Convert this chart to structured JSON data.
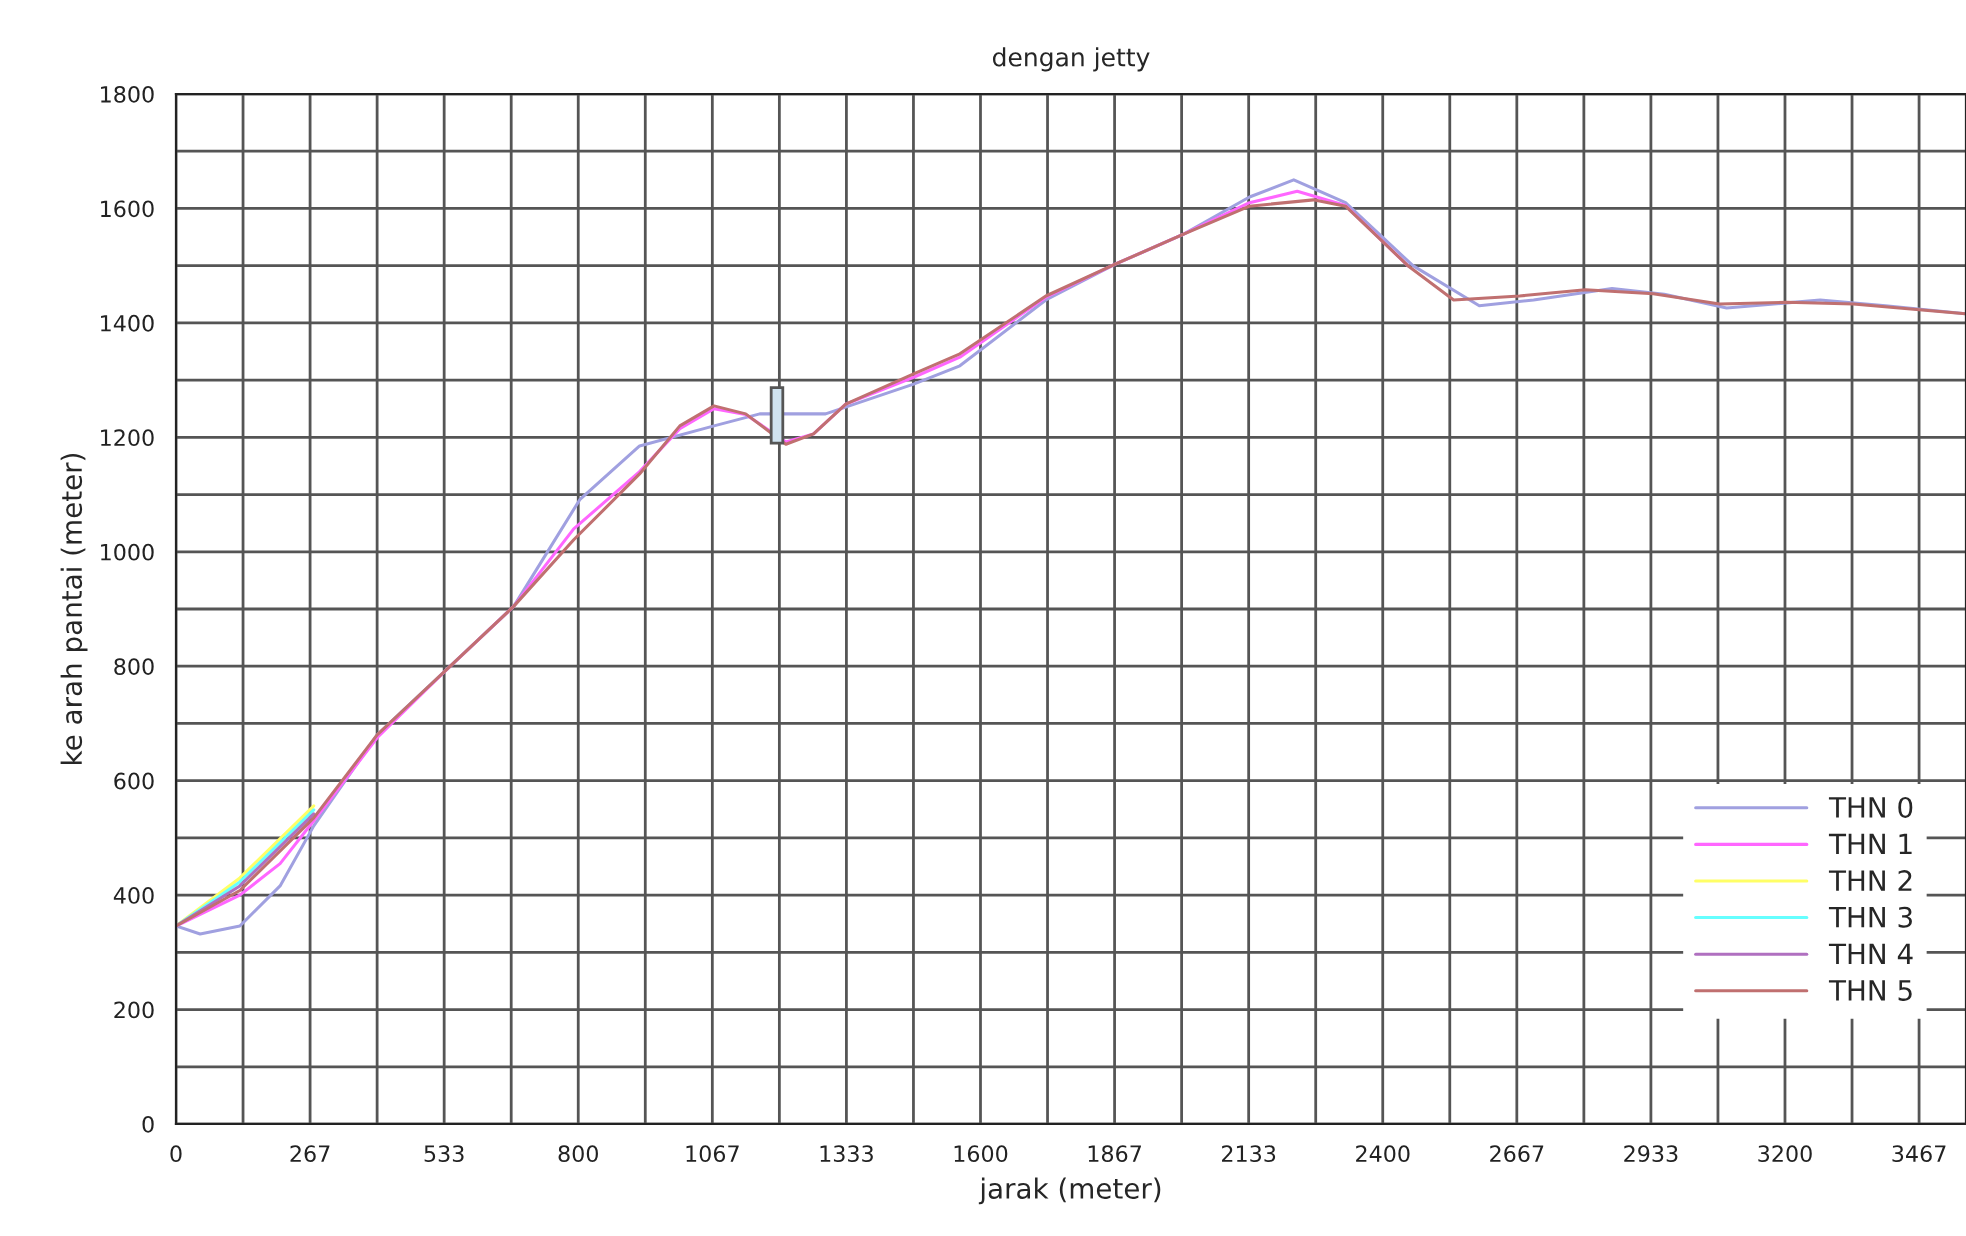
{
  "chart_data": {
    "type": "line",
    "title": "dengan jetty",
    "xlabel": "jarak (meter)",
    "ylabel": "ke arah pantai (meter)",
    "xlim": [
      0,
      3560
    ],
    "ylim": [
      0,
      1800
    ],
    "xticks": [
      0,
      {
        "value": 133.33,
        "label": null
      },
      {
        "value": 266.67,
        "label": "267"
      },
      {
        "value": 400,
        "label": null
      },
      {
        "value": 533.33,
        "label": "533"
      },
      {
        "value": 666.67,
        "label": null
      },
      800,
      {
        "value": 933.33,
        "label": null
      },
      {
        "value": 1066.67,
        "label": "1067"
      },
      {
        "value": 1200,
        "label": null
      },
      {
        "value": 1333.33,
        "label": "1333"
      },
      {
        "value": 1466.67,
        "label": null
      },
      1600,
      {
        "value": 1733.33,
        "label": null
      },
      {
        "value": 1866.67,
        "label": "1867"
      },
      {
        "value": 2000,
        "label": null
      },
      {
        "value": 2133.33,
        "label": "2133"
      },
      {
        "value": 2266.67,
        "label": null
      },
      2400,
      {
        "value": 2533.33,
        "label": null
      },
      {
        "value": 2666.67,
        "label": "2667"
      },
      {
        "value": 2800,
        "label": null
      },
      {
        "value": 2933.33,
        "label": "2933"
      },
      {
        "value": 3066.67,
        "label": null
      },
      3200,
      {
        "value": 3333.33,
        "label": null
      },
      {
        "value": 3466.67,
        "label": "3467"
      }
    ],
    "yticks": [
      0,
      {
        "value": 100,
        "label": null
      },
      200,
      {
        "value": 300,
        "label": null
      },
      400,
      {
        "value": 500,
        "label": null
      },
      600,
      {
        "value": 700,
        "label": null
      },
      800,
      {
        "value": 900,
        "label": null
      },
      1000,
      {
        "value": 1100,
        "label": null
      },
      1200,
      {
        "value": 1300,
        "label": null
      },
      1400,
      {
        "value": 1500,
        "label": null
      },
      1600,
      {
        "value": 1700,
        "label": null
      },
      1800
    ],
    "grid": true,
    "legend": "bottom right",
    "marker": "none",
    "line_style": "solid",
    "series": [
      {
        "name": "THN 0",
        "color": "#a0a0e0",
        "x": [
          0,
          48,
          127,
          207,
          274,
          400,
          537,
          672,
          803,
          922,
          1070,
          1161,
          1292,
          1467,
          1559,
          1730,
          1869,
          2004,
          2135,
          2223,
          2326,
          2460,
          2592,
          2700,
          2856,
          2960,
          3084,
          3270,
          3400,
          3559
        ],
        "values": [
          346,
          332,
          346,
          416,
          521,
          680,
          793,
          905,
          1091,
          1185,
          1220,
          1241,
          1241,
          1293,
          1325,
          1440,
          1503,
          1555,
          1620,
          1650,
          1610,
          1500,
          1430,
          1440,
          1460,
          1450,
          1426,
          1440,
          1430,
          1416
        ]
      },
      {
        "name": "THN 1",
        "color": "#ff66ff",
        "x": [
          0,
          127,
          207,
          274,
          400,
          537,
          672,
          791,
          922,
          1002,
          1070,
          1133,
          1213,
          1268,
          1332,
          1467,
          1559,
          1730,
          1869,
          2004,
          2135,
          2230,
          2326,
          2450
        ],
        "values": [
          346,
          400,
          455,
          530,
          675,
          793,
          905,
          1040,
          1140,
          1215,
          1250,
          1240,
          1192,
          1206,
          1258,
          1305,
          1340,
          1445,
          1503,
          1555,
          1610,
          1630,
          1605,
          1500
        ]
      },
      {
        "name": "THN 2",
        "color": "#ffff66",
        "x": [
          0,
          127,
          274
        ],
        "values": [
          346,
          430,
          556
        ]
      },
      {
        "name": "THN 3",
        "color": "#66ffff",
        "x": [
          0,
          127,
          274
        ],
        "values": [
          346,
          423,
          549
        ]
      },
      {
        "name": "THN 4",
        "color": "#b070c0",
        "x": [
          0,
          127,
          274
        ],
        "values": [
          346,
          416,
          542
        ]
      },
      {
        "name": "THN 5",
        "color": "#c07070",
        "x": [
          0,
          127,
          274,
          400,
          537,
          672,
          791,
          922,
          1002,
          1070,
          1133,
          1213,
          1268,
          1332,
          1467,
          1559,
          1730,
          1869,
          2004,
          2135,
          2262,
          2326,
          2450,
          2541,
          2672,
          2803,
          2938,
          3070,
          3203,
          3336,
          3467,
          3559
        ],
        "values": [
          346,
          408,
          535,
          680,
          793,
          905,
          1021,
          1136,
          1220,
          1255,
          1241,
          1188,
          1206,
          1258,
          1311,
          1346,
          1447,
          1503,
          1555,
          1604,
          1615,
          1604,
          1500,
          1440,
          1447,
          1458,
          1451,
          1433,
          1436,
          1433,
          1423,
          1416
        ]
      }
    ]
  }
}
